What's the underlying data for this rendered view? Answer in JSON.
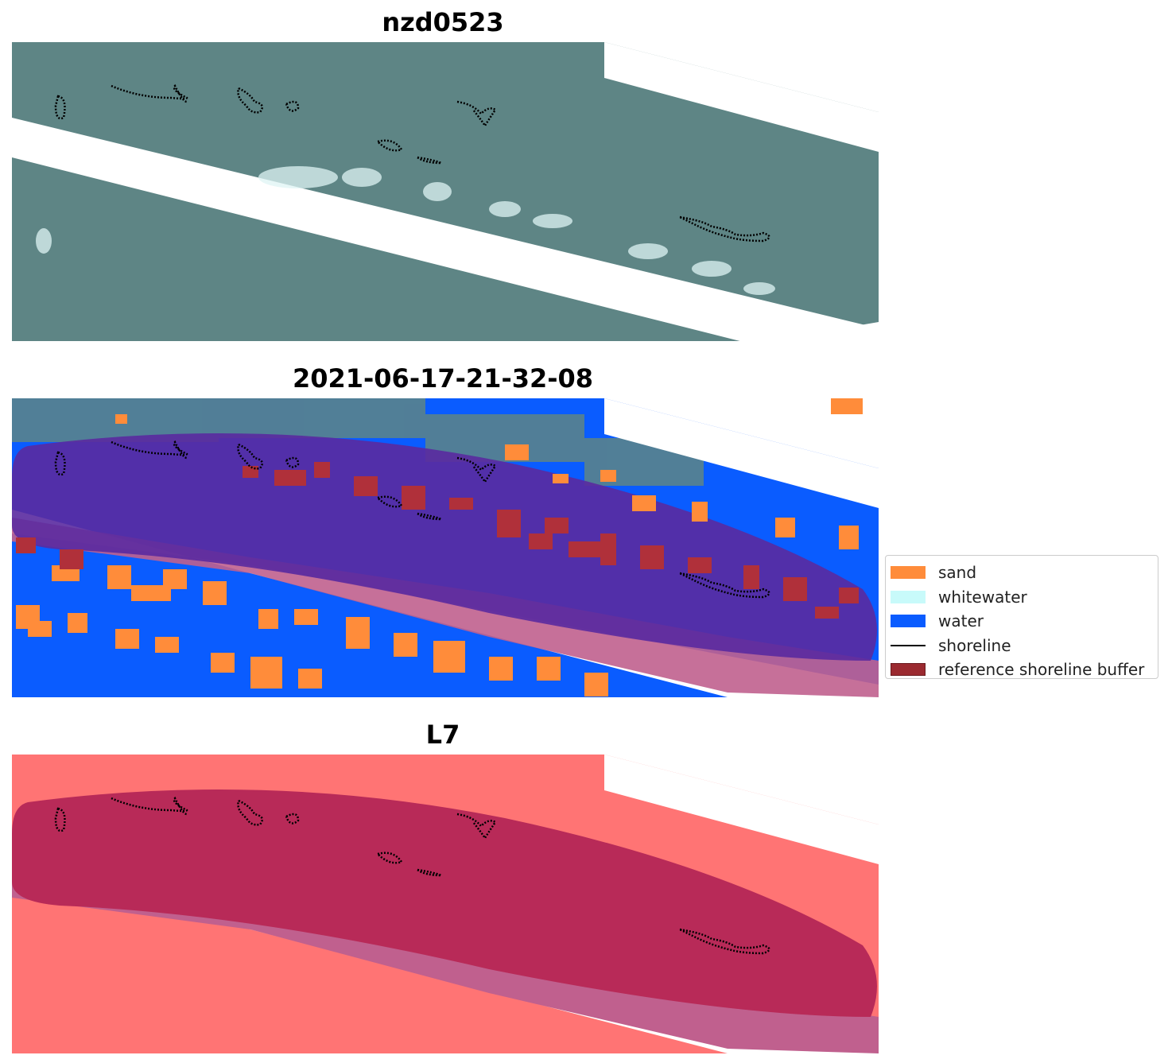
{
  "panels": [
    {
      "title": "nzd0523",
      "kind": "rgb"
    },
    {
      "title": "2021-06-17-21-32-08",
      "kind": "classified"
    },
    {
      "title": "L7",
      "kind": "index"
    }
  ],
  "legend": {
    "items": [
      {
        "label": "sand",
        "color": "#ff8c3a",
        "type": "patch"
      },
      {
        "label": "whitewater",
        "color": "#c8fafa",
        "type": "patch"
      },
      {
        "label": "water",
        "color": "#0a5cff",
        "type": "patch"
      },
      {
        "label": "shoreline",
        "color": "#000000",
        "type": "line"
      },
      {
        "label": "reference shoreline buffer",
        "color": "#9b2a30",
        "type": "patch"
      }
    ]
  },
  "colors": {
    "rgb_base": "#5e8585",
    "whitewater": "#dff4f4",
    "water": "#0a5cff",
    "sand": "#ff8c3a",
    "buffer_overlay": "#5a2aa0",
    "buffer_on_sand": "#b0303a",
    "index_base": "#ff7474",
    "index_buffer": "#b82a58",
    "index_band": "#c0608e"
  }
}
